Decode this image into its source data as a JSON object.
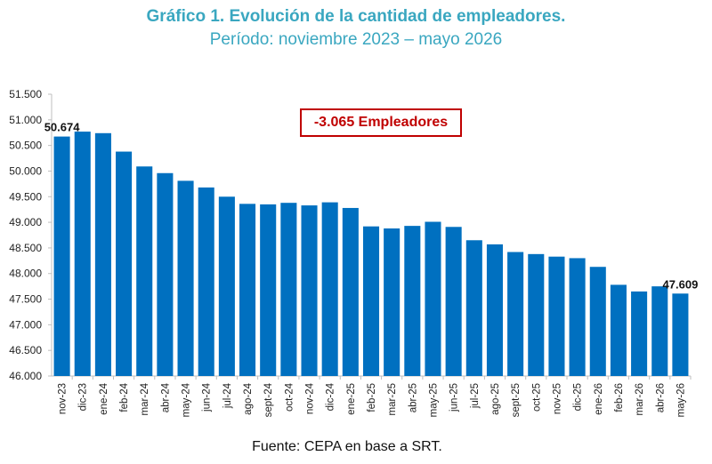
{
  "title": "Gráfico 1. Evolución de la cantidad de empleadores.",
  "subtitle": "Período: noviembre 2023 – mayo 2026",
  "annotation": "-3.065 Empleadores",
  "source": "Fuente: CEPA en base a SRT.",
  "colors": {
    "bar": "#0070c0",
    "title": "#3aa7c0",
    "annotation": "#c00000"
  },
  "chart_data": {
    "type": "bar",
    "title": "Gráfico 1. Evolución de la cantidad de empleadores.",
    "subtitle": "Período: noviembre 2023 – mayo 2026",
    "xlabel": "",
    "ylabel": "",
    "ylim": [
      46000,
      51500
    ],
    "yticks": [
      46000,
      46500,
      47000,
      47500,
      48000,
      48500,
      49000,
      49500,
      50000,
      50500,
      51000,
      51500
    ],
    "ytick_labels": [
      "46.000",
      "46.500",
      "47.000",
      "47.500",
      "48.000",
      "48.500",
      "49.000",
      "49.500",
      "50.000",
      "50.500",
      "51.000",
      "51.500"
    ],
    "grid": false,
    "legend": "none",
    "categories": [
      "nov-23",
      "dic-23",
      "ene-24",
      "feb-24",
      "mar-24",
      "abr-24",
      "may-24",
      "jun-24",
      "jul-24",
      "ago-24",
      "sept-24",
      "oct-24",
      "nov-24",
      "dic-24",
      "ene-25",
      "feb-25",
      "mar-25",
      "abr-25",
      "may-25",
      "jun-25",
      "jul-25",
      "ago-25",
      "sept-25",
      "oct-25",
      "nov-25",
      "dic-25",
      "ene-26",
      "feb-26",
      "mar-26",
      "abr-26",
      "may-26"
    ],
    "values": [
      50674,
      50770,
      50740,
      50380,
      50090,
      49960,
      49810,
      49680,
      49500,
      49360,
      49350,
      49380,
      49330,
      49390,
      49280,
      48920,
      48880,
      48930,
      49010,
      48910,
      48650,
      48570,
      48420,
      48380,
      48330,
      48300,
      48130,
      47780,
      47650,
      47750,
      47609
    ],
    "data_labels": [
      {
        "index": 0,
        "text": "50.674"
      },
      {
        "index": 30,
        "text": "47.609"
      }
    ],
    "annotations": [
      "-3.065 Empleadores"
    ]
  }
}
